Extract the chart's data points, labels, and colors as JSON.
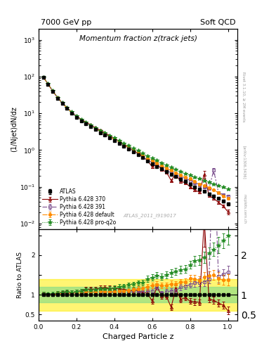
{
  "title_left": "7000 GeV pp",
  "title_right": "Soft QCD",
  "plot_title": "Momentum fraction z(track jets)",
  "ylabel_main": "(1/Njet)dN/dz",
  "ylabel_ratio": "Ratio to ATLAS",
  "xlabel": "Charged Particle z",
  "watermark": "ATLAS_2011_I919017",
  "right_label": "Rivet 3.1.10, ≥ 2M events",
  "arxiv_label": "[arXiv:1306.3436]",
  "mcplots_label": "mcplots.cern.ch",
  "xlim": [
    0.0,
    1.05
  ],
  "ylim_main": [
    0.007,
    2000
  ],
  "ylim_ratio": [
    0.35,
    2.65
  ],
  "atlas_x": [
    0.025,
    0.05,
    0.075,
    0.1,
    0.125,
    0.15,
    0.175,
    0.2,
    0.225,
    0.25,
    0.275,
    0.3,
    0.325,
    0.35,
    0.375,
    0.4,
    0.425,
    0.45,
    0.475,
    0.5,
    0.525,
    0.55,
    0.575,
    0.6,
    0.625,
    0.65,
    0.675,
    0.7,
    0.725,
    0.75,
    0.775,
    0.8,
    0.825,
    0.85,
    0.875,
    0.9,
    0.925,
    0.95,
    0.975,
    1.0
  ],
  "atlas_y": [
    95,
    62,
    40,
    26,
    18.5,
    13.5,
    10.2,
    7.8,
    6.3,
    5.1,
    4.3,
    3.6,
    3.0,
    2.55,
    2.15,
    1.82,
    1.52,
    1.28,
    1.06,
    0.89,
    0.74,
    0.62,
    0.5,
    0.42,
    0.35,
    0.31,
    0.26,
    0.22,
    0.19,
    0.16,
    0.14,
    0.12,
    0.1,
    0.088,
    0.076,
    0.065,
    0.056,
    0.048,
    0.041,
    0.035
  ],
  "atlas_yerr": [
    3,
    2,
    1.2,
    0.8,
    0.6,
    0.45,
    0.35,
    0.28,
    0.22,
    0.19,
    0.16,
    0.13,
    0.11,
    0.095,
    0.082,
    0.07,
    0.06,
    0.05,
    0.042,
    0.036,
    0.03,
    0.026,
    0.022,
    0.019,
    0.016,
    0.014,
    0.012,
    0.011,
    0.009,
    0.008,
    0.007,
    0.006,
    0.006,
    0.005,
    0.005,
    0.004,
    0.004,
    0.004,
    0.003,
    0.003
  ],
  "py370_x": [
    0.025,
    0.05,
    0.075,
    0.1,
    0.125,
    0.15,
    0.175,
    0.2,
    0.225,
    0.25,
    0.275,
    0.3,
    0.325,
    0.35,
    0.375,
    0.4,
    0.425,
    0.45,
    0.475,
    0.5,
    0.525,
    0.55,
    0.575,
    0.6,
    0.625,
    0.65,
    0.675,
    0.7,
    0.725,
    0.75,
    0.775,
    0.8,
    0.825,
    0.85,
    0.875,
    0.9,
    0.925,
    0.95,
    0.975,
    1.0
  ],
  "py370_y": [
    97,
    62,
    40,
    27,
    19.2,
    14.2,
    10.7,
    8.4,
    6.9,
    5.8,
    4.9,
    4.1,
    3.5,
    3.0,
    2.5,
    2.1,
    1.75,
    1.45,
    1.18,
    0.98,
    0.82,
    0.65,
    0.52,
    0.35,
    0.42,
    0.3,
    0.25,
    0.15,
    0.22,
    0.14,
    0.13,
    0.1,
    0.082,
    0.071,
    0.22,
    0.058,
    0.048,
    0.038,
    0.03,
    0.021
  ],
  "py370_yerr": [
    3,
    1.8,
    1.2,
    0.8,
    0.6,
    0.45,
    0.35,
    0.28,
    0.22,
    0.19,
    0.16,
    0.14,
    0.12,
    0.1,
    0.09,
    0.08,
    0.07,
    0.06,
    0.05,
    0.04,
    0.035,
    0.03,
    0.025,
    0.022,
    0.019,
    0.016,
    0.014,
    0.012,
    0.01,
    0.009,
    0.008,
    0.007,
    0.006,
    0.005,
    0.05,
    0.004,
    0.004,
    0.003,
    0.003,
    0.003
  ],
  "py391_x": [
    0.025,
    0.05,
    0.075,
    0.1,
    0.125,
    0.15,
    0.175,
    0.2,
    0.225,
    0.25,
    0.275,
    0.3,
    0.325,
    0.35,
    0.375,
    0.4,
    0.425,
    0.45,
    0.475,
    0.5,
    0.525,
    0.55,
    0.575,
    0.6,
    0.625,
    0.65,
    0.675,
    0.7,
    0.725,
    0.75,
    0.775,
    0.8,
    0.825,
    0.85,
    0.875,
    0.9,
    0.925,
    0.95,
    0.975,
    1.0
  ],
  "py391_y": [
    96,
    62,
    40,
    26.5,
    19.0,
    14.0,
    10.5,
    8.1,
    6.6,
    5.4,
    4.6,
    3.8,
    3.2,
    2.7,
    2.28,
    1.92,
    1.62,
    1.36,
    1.14,
    0.95,
    0.78,
    0.65,
    0.54,
    0.46,
    0.42,
    0.32,
    0.28,
    0.24,
    0.21,
    0.19,
    0.17,
    0.15,
    0.13,
    0.115,
    0.1,
    0.09,
    0.28,
    0.07,
    0.062,
    0.055
  ],
  "py391_yerr": [
    3,
    1.8,
    1.2,
    0.8,
    0.6,
    0.45,
    0.35,
    0.28,
    0.22,
    0.19,
    0.16,
    0.13,
    0.11,
    0.095,
    0.082,
    0.07,
    0.06,
    0.05,
    0.042,
    0.036,
    0.03,
    0.026,
    0.022,
    0.019,
    0.016,
    0.014,
    0.012,
    0.011,
    0.009,
    0.008,
    0.007,
    0.006,
    0.006,
    0.005,
    0.005,
    0.004,
    0.05,
    0.004,
    0.003,
    0.003
  ],
  "pydef_x": [
    0.025,
    0.05,
    0.075,
    0.1,
    0.125,
    0.15,
    0.175,
    0.2,
    0.225,
    0.25,
    0.275,
    0.3,
    0.325,
    0.35,
    0.375,
    0.4,
    0.425,
    0.45,
    0.475,
    0.5,
    0.525,
    0.55,
    0.575,
    0.6,
    0.625,
    0.65,
    0.675,
    0.7,
    0.725,
    0.75,
    0.775,
    0.8,
    0.825,
    0.85,
    0.875,
    0.9,
    0.925,
    0.95,
    0.975,
    1.0
  ],
  "pydef_y": [
    96,
    62,
    40,
    26.5,
    19.0,
    14.0,
    10.5,
    8.1,
    6.6,
    5.5,
    4.6,
    3.85,
    3.25,
    2.75,
    2.32,
    1.96,
    1.65,
    1.4,
    1.18,
    1.0,
    0.85,
    0.72,
    0.6,
    0.52,
    0.44,
    0.38,
    0.32,
    0.28,
    0.24,
    0.21,
    0.185,
    0.17,
    0.14,
    0.12,
    0.11,
    0.096,
    0.084,
    0.068,
    0.056,
    0.048
  ],
  "pydef_yerr": [
    3,
    1.8,
    1.2,
    0.8,
    0.6,
    0.45,
    0.35,
    0.28,
    0.22,
    0.19,
    0.16,
    0.13,
    0.11,
    0.095,
    0.082,
    0.07,
    0.06,
    0.05,
    0.042,
    0.036,
    0.03,
    0.026,
    0.022,
    0.019,
    0.016,
    0.014,
    0.012,
    0.011,
    0.009,
    0.008,
    0.007,
    0.006,
    0.006,
    0.005,
    0.005,
    0.004,
    0.004,
    0.004,
    0.003,
    0.003
  ],
  "pyq2o_x": [
    0.025,
    0.05,
    0.075,
    0.1,
    0.125,
    0.15,
    0.175,
    0.2,
    0.225,
    0.25,
    0.275,
    0.3,
    0.325,
    0.35,
    0.375,
    0.4,
    0.425,
    0.45,
    0.475,
    0.5,
    0.525,
    0.55,
    0.575,
    0.6,
    0.625,
    0.65,
    0.675,
    0.7,
    0.725,
    0.75,
    0.775,
    0.8,
    0.825,
    0.85,
    0.875,
    0.9,
    0.925,
    0.95,
    0.975,
    1.0
  ],
  "pyq2o_y": [
    97,
    63,
    41,
    27,
    19.5,
    14.5,
    10.8,
    8.4,
    6.9,
    5.7,
    4.8,
    4.05,
    3.42,
    2.9,
    2.47,
    2.12,
    1.82,
    1.55,
    1.32,
    1.12,
    0.96,
    0.81,
    0.7,
    0.6,
    0.52,
    0.45,
    0.39,
    0.34,
    0.3,
    0.26,
    0.23,
    0.21,
    0.185,
    0.165,
    0.148,
    0.133,
    0.12,
    0.108,
    0.097,
    0.087
  ],
  "pyq2o_yerr": [
    3,
    1.8,
    1.2,
    0.8,
    0.6,
    0.45,
    0.35,
    0.28,
    0.22,
    0.19,
    0.16,
    0.13,
    0.11,
    0.095,
    0.082,
    0.07,
    0.06,
    0.05,
    0.042,
    0.036,
    0.03,
    0.026,
    0.022,
    0.019,
    0.016,
    0.014,
    0.012,
    0.011,
    0.009,
    0.008,
    0.007,
    0.006,
    0.006,
    0.005,
    0.005,
    0.004,
    0.004,
    0.004,
    0.003,
    0.003
  ],
  "color_atlas": "#000000",
  "color_py370": "#8B0000",
  "color_py391": "#7B4F8E",
  "color_pydef": "#FF8C00",
  "color_pyq2o": "#228B22",
  "bg_color": "#ffffff",
  "ratio_band_yellow": [
    0.6,
    1.4
  ],
  "ratio_band_green": [
    0.8,
    1.2
  ]
}
